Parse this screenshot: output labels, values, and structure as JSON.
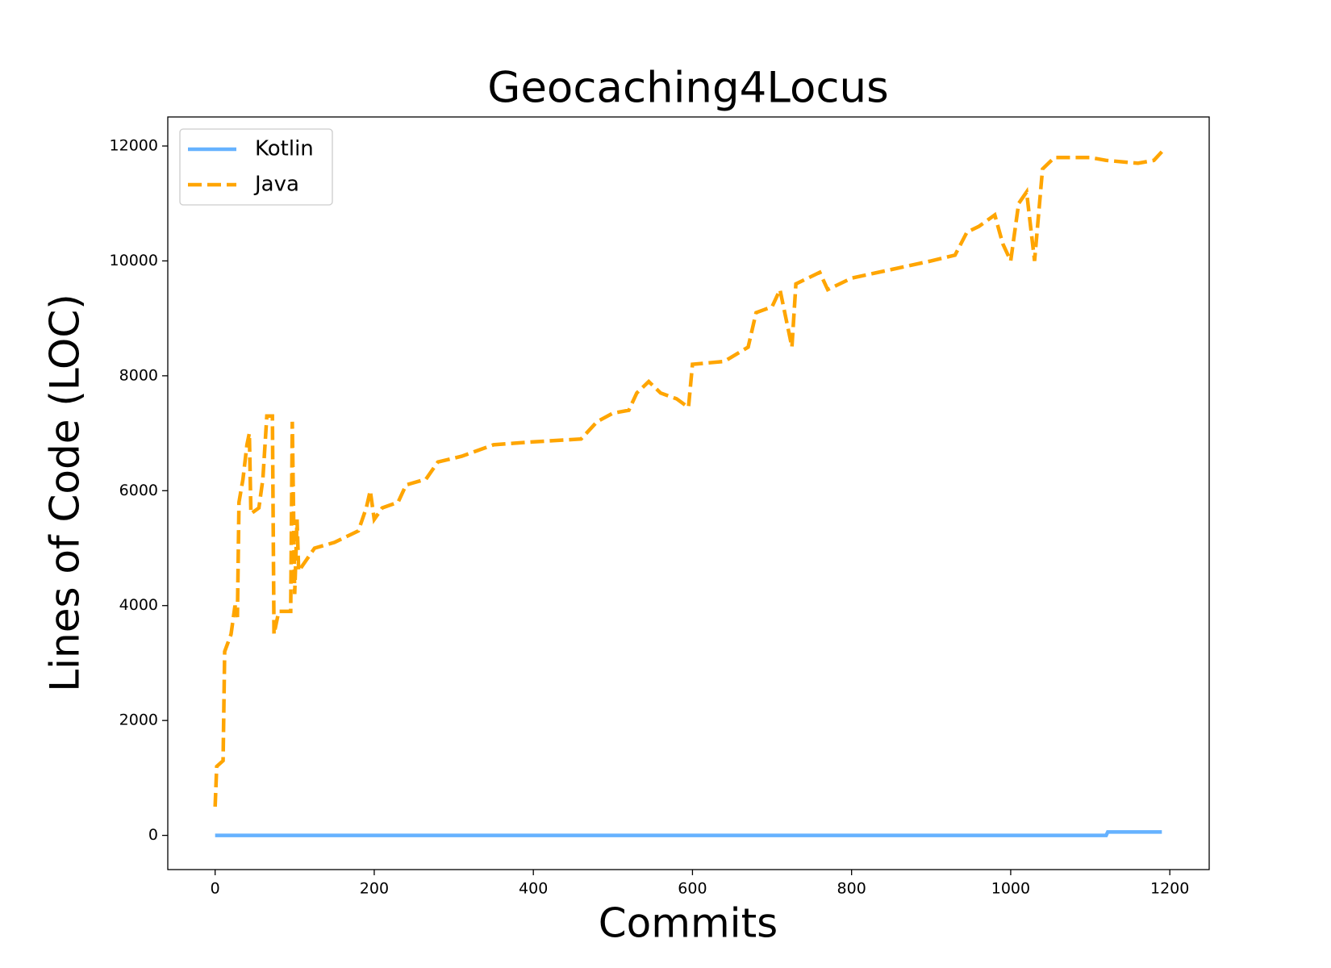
{
  "chart_data": {
    "type": "line",
    "title": "Geocaching4Locus",
    "x_label": "Commits",
    "y_label": "Lines of Code (LOC)",
    "xlim": [
      -59.5,
      1249.5
    ],
    "ylim": [
      -595.5,
      12505.5
    ],
    "xticks": [
      0,
      200,
      400,
      600,
      800,
      1000,
      1200
    ],
    "yticks": [
      0,
      2000,
      4000,
      6000,
      8000,
      10000,
      12000
    ],
    "legend": "upper left",
    "series": [
      {
        "name": "Kotlin",
        "color": "#66b2ff",
        "style": "solid",
        "x": [
          0,
          1120,
          1122,
          1190
        ],
        "values": [
          0,
          0,
          60,
          60
        ]
      },
      {
        "name": "Java",
        "color": "#ffa500",
        "style": "dashed",
        "x": [
          0,
          2,
          10,
          12,
          20,
          25,
          28,
          30,
          35,
          40,
          43,
          45,
          55,
          60,
          65,
          72,
          74,
          80,
          95,
          97,
          100,
          103,
          105,
          115,
          125,
          150,
          180,
          190,
          195,
          200,
          210,
          230,
          240,
          265,
          280,
          310,
          350,
          400,
          460,
          480,
          500,
          520,
          530,
          545,
          560,
          580,
          595,
          600,
          640,
          670,
          680,
          700,
          710,
          725,
          730,
          760,
          770,
          800,
          850,
          900,
          930,
          945,
          960,
          980,
          990,
          1000,
          1010,
          1020,
          1030,
          1040,
          1055,
          1100,
          1120,
          1160,
          1180,
          1190
        ],
        "values": [
          500,
          1200,
          1300,
          3200,
          3500,
          4000,
          3800,
          5800,
          6200,
          6800,
          7000,
          5600,
          5700,
          6200,
          7300,
          7300,
          3500,
          3900,
          3900,
          7200,
          4200,
          5500,
          4600,
          4800,
          5000,
          5100,
          5300,
          5700,
          6000,
          5500,
          5700,
          5800,
          6100,
          6200,
          6500,
          6600,
          6800,
          6850,
          6900,
          7200,
          7350,
          7400,
          7700,
          7900,
          7700,
          7600,
          7450,
          8200,
          8250,
          8500,
          9100,
          9200,
          9500,
          8500,
          9600,
          9800,
          9500,
          9700,
          9850,
          10000,
          10100,
          10500,
          10600,
          10800,
          10300,
          10000,
          11000,
          11200,
          10000,
          11600,
          11800,
          11800,
          11750,
          11700,
          11750,
          11900
        ]
      }
    ]
  }
}
